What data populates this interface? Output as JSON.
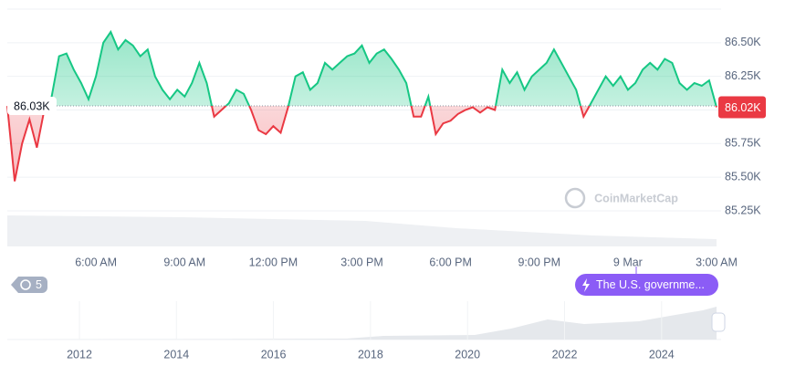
{
  "chart_data": {
    "type": "line",
    "baseline": {
      "value": 86030,
      "label": "86.03K"
    },
    "current_price": {
      "value": 86020,
      "label": "86.02K"
    },
    "up_color": "#16c784",
    "down_color": "#ea3943",
    "watermark": "CoinMarketCap",
    "ylim": [
      84985,
      86750
    ],
    "yticks": [
      {
        "value": 85250,
        "label": "85.25K"
      },
      {
        "value": 85500,
        "label": "85.50K"
      },
      {
        "value": 85750,
        "label": "85.75K"
      },
      {
        "value": 86000,
        "label": "86.00K"
      },
      {
        "value": 86250,
        "label": "86.25K"
      },
      {
        "value": 86500,
        "label": "86.50K"
      }
    ],
    "xlim": [
      0,
      96
    ],
    "xticks": [
      {
        "value": 12,
        "label": "6:00 AM"
      },
      {
        "value": 24,
        "label": "9:00 AM"
      },
      {
        "value": 36,
        "label": "12:00 PM"
      },
      {
        "value": 48,
        "label": "3:00 PM"
      },
      {
        "value": 60,
        "label": "6:00 PM"
      },
      {
        "value": 72,
        "label": "9:00 PM"
      },
      {
        "value": 84,
        "label": "9 Mar"
      },
      {
        "value": 96,
        "label": "3:00 AM"
      }
    ],
    "grid": true,
    "values": [
      86030,
      85470,
      85750,
      85930,
      85720,
      86000,
      86100,
      86400,
      86420,
      86300,
      86200,
      86080,
      86250,
      86500,
      86580,
      86450,
      86520,
      86480,
      86400,
      86450,
      86250,
      86150,
      86080,
      86150,
      86100,
      86200,
      86350,
      86200,
      85950,
      86000,
      86050,
      86150,
      86120,
      86000,
      85850,
      85820,
      85880,
      85830,
      86020,
      86250,
      86280,
      86150,
      86200,
      86350,
      86300,
      86350,
      86400,
      86420,
      86480,
      86350,
      86420,
      86450,
      86380,
      86300,
      86200,
      85950,
      85950,
      86100,
      85820,
      85900,
      85920,
      85970,
      86000,
      86020,
      85980,
      86020,
      86000,
      86300,
      86200,
      86280,
      86150,
      86250,
      86300,
      86350,
      86450,
      86350,
      86250,
      86150,
      85950,
      86050,
      86150,
      86250,
      86180,
      86250,
      86150,
      86200,
      86300,
      86350,
      86300,
      86380,
      86350,
      86200,
      86150,
      86200,
      86180,
      86220,
      86020
    ],
    "history_badge": "5",
    "event_label": "The U.S. governme...",
    "navigator": {
      "xlim": [
        2010.5,
        2025.2
      ],
      "xticks": [
        2012,
        2014,
        2016,
        2018,
        2020,
        2022,
        2024
      ]
    }
  }
}
